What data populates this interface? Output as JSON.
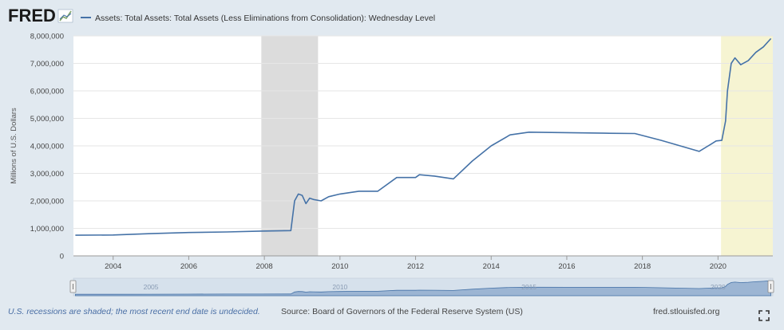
{
  "brand": {
    "logo_text": "FRED"
  },
  "legend": {
    "series_label": "Assets: Total Assets: Total Assets (Less Eliminations from Consolidation): Wednesday Level"
  },
  "footer": {
    "recession_note": "U.S. recessions are shaded; the most recent end date is undecided.",
    "source": "Source: Board of Governors of the Federal Reserve System (US)",
    "site": "fred.stlouisfed.org"
  },
  "navigator": {
    "tick_labels": [
      "2005",
      "2010",
      "2015",
      "2020"
    ]
  },
  "colors": {
    "line": "#4572a7",
    "recession_shade": "#dcdcdc",
    "recent_shade": "#f6f4d2",
    "background": "#e1e9f0",
    "plot_background": "#ffffff"
  },
  "icons": {
    "logo_graph": "line-graph-icon",
    "fullscreen": "expand-icon"
  },
  "chart_data": {
    "type": "line",
    "title": "",
    "xlabel": "",
    "ylabel": "Millions of U.S. Dollars",
    "xlim": [
      2002.95,
      2021.45
    ],
    "ylim": [
      0,
      8000000
    ],
    "x_ticks": [
      2004,
      2006,
      2008,
      2010,
      2012,
      2014,
      2016,
      2018,
      2020
    ],
    "x_tick_labels": [
      "2004",
      "2006",
      "2008",
      "2010",
      "2012",
      "2014",
      "2016",
      "2018",
      "2020"
    ],
    "y_ticks": [
      0,
      1000000,
      2000000,
      3000000,
      4000000,
      5000000,
      6000000,
      7000000,
      8000000
    ],
    "y_tick_labels": [
      "0",
      "1,000,000",
      "2,000,000",
      "3,000,000",
      "4,000,000",
      "5,000,000",
      "6,000,000",
      "7,000,000",
      "8,000,000"
    ],
    "grid": true,
    "legend_position": "top-left",
    "shaded_regions": [
      {
        "start": 2007.92,
        "end": 2009.42,
        "kind": "recession"
      },
      {
        "start": 2020.08,
        "end": 2021.45,
        "kind": "recession-undecided"
      }
    ],
    "series": [
      {
        "name": "Assets: Total Assets: Total Assets (Less Eliminations from Consolidation): Wednesday Level",
        "x": [
          2003.0,
          2004.0,
          2005.0,
          2006.0,
          2007.0,
          2007.9,
          2008.7,
          2008.8,
          2008.9,
          2009.0,
          2009.1,
          2009.2,
          2009.3,
          2009.5,
          2009.7,
          2010.0,
          2010.5,
          2011.0,
          2011.5,
          2012.0,
          2012.1,
          2012.5,
          2013.0,
          2013.5,
          2014.0,
          2014.5,
          2015.0,
          2016.0,
          2017.0,
          2017.8,
          2018.5,
          2019.0,
          2019.5,
          2019.8,
          2019.95,
          2020.1,
          2020.2,
          2020.25,
          2020.35,
          2020.45,
          2020.6,
          2020.8,
          2021.0,
          2021.2,
          2021.4
        ],
        "y": [
          750000,
          760000,
          810000,
          850000,
          870000,
          900000,
          920000,
          2000000,
          2250000,
          2200000,
          1900000,
          2100000,
          2050000,
          2000000,
          2150000,
          2250000,
          2350000,
          2350000,
          2850000,
          2850000,
          2950000,
          2900000,
          2800000,
          3450000,
          4000000,
          4400000,
          4500000,
          4480000,
          4460000,
          4450000,
          4200000,
          4000000,
          3800000,
          4050000,
          4180000,
          4200000,
          4900000,
          6000000,
          7000000,
          7200000,
          6950000,
          7100000,
          7400000,
          7600000,
          7900000
        ]
      }
    ]
  }
}
